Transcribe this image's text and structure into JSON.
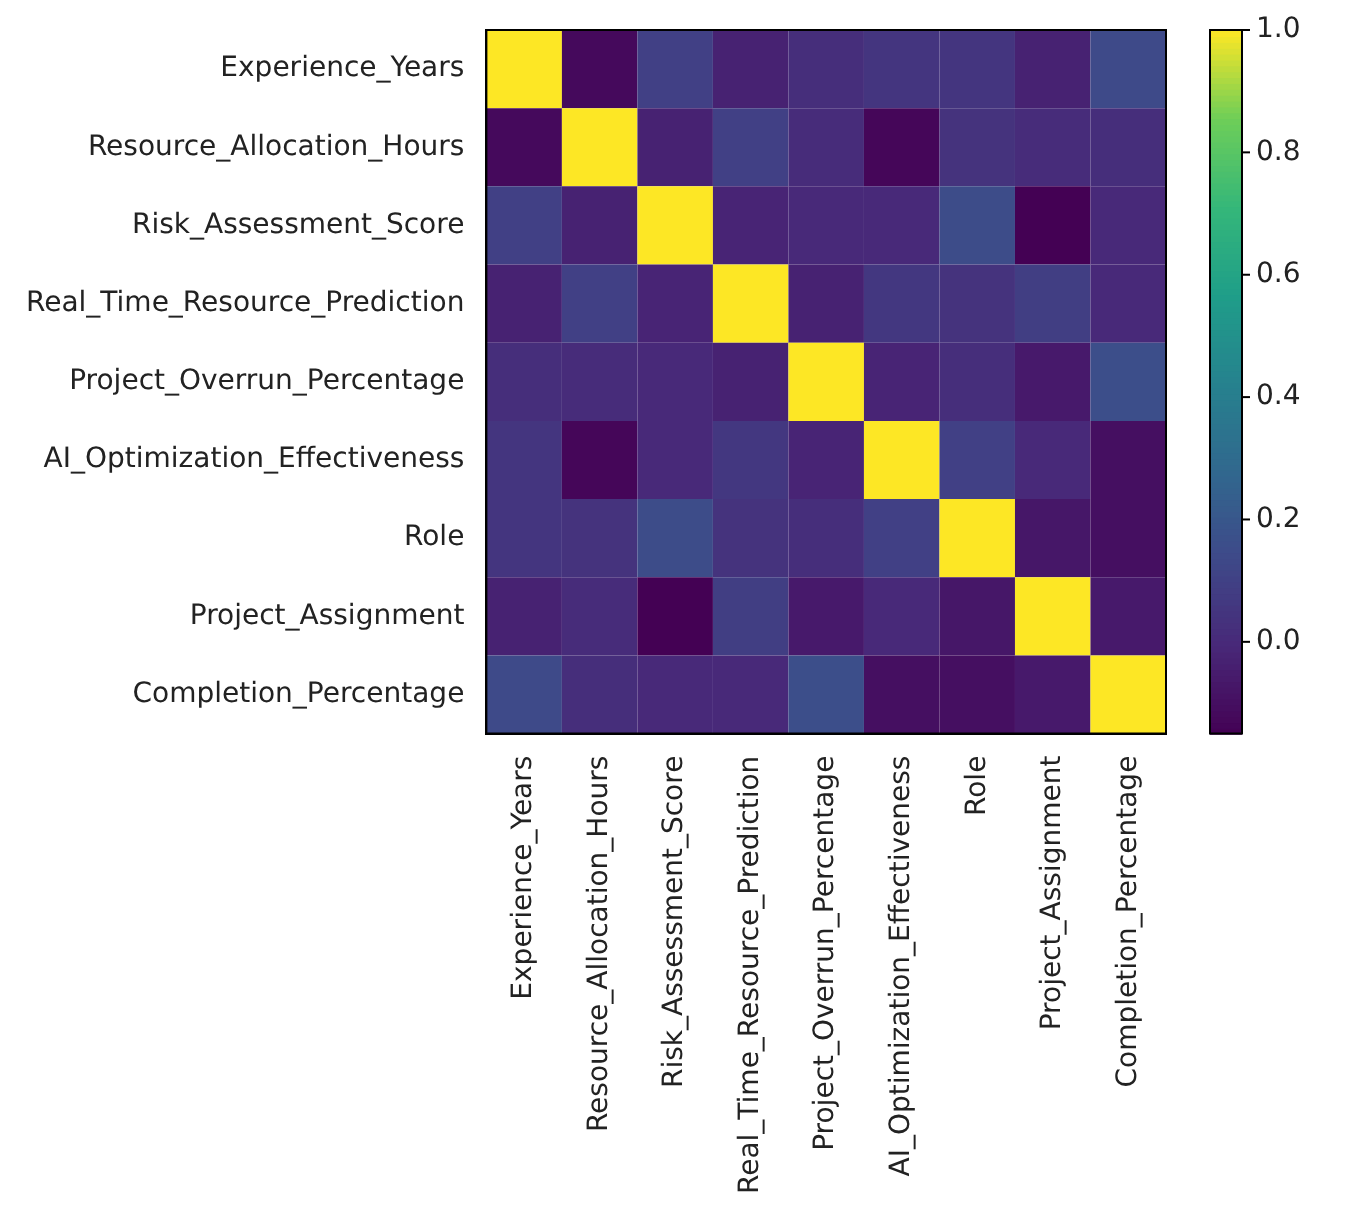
{
  "chart_data": {
    "type": "heatmap",
    "categories": [
      "Experience_Years",
      "Resource_Allocation_Hours",
      "Risk_Assessment_Score",
      "Real_Time_Resource_Prediction",
      "Project_Overrun_Percentage",
      "AI_Optimization_Effectiveness",
      "Role",
      "Project_Assignment",
      "Completion_Percentage"
    ],
    "y_categories": [
      "Experience_Years",
      "Resource_Allocation_Hours",
      "Risk_Assessment_Score",
      "Real_Time_Resource_Prediction",
      "Project_Overrun_Percentage",
      "AI_Optimization_Effectiveness",
      "Role",
      "Project_Assignment",
      "Completion_Percentage"
    ],
    "cells": [
      [
        1,
        -0.12,
        0.1,
        -0.03,
        0.02,
        0.05,
        0.05,
        -0.03,
        0.14
      ],
      [
        -0.12,
        1,
        -0.03,
        0.1,
        0.01,
        -0.13,
        0.04,
        0.01,
        0.02
      ],
      [
        0.1,
        -0.03,
        1,
        -0.02,
        0.0,
        0.0,
        0.15,
        -0.15,
        0.0
      ],
      [
        -0.03,
        0.1,
        -0.02,
        1,
        -0.03,
        0.06,
        0.04,
        0.09,
        0.0
      ],
      [
        0.02,
        0.01,
        0.0,
        -0.03,
        1,
        -0.02,
        0.02,
        -0.06,
        0.16
      ],
      [
        0.05,
        -0.13,
        0.0,
        0.06,
        -0.02,
        1,
        0.1,
        0.0,
        -0.1
      ],
      [
        0.05,
        0.04,
        0.15,
        0.04,
        0.02,
        0.1,
        1,
        -0.07,
        -0.1
      ],
      [
        -0.03,
        0.01,
        -0.15,
        0.09,
        -0.06,
        0.0,
        -0.07,
        1,
        -0.06
      ],
      [
        0.14,
        0.02,
        0.0,
        0.0,
        0.16,
        -0.1,
        -0.1,
        -0.06,
        1
      ]
    ],
    "clim": [
      -0.15,
      1.0
    ],
    "cticks": [
      {
        "value": 0,
        "label": "0.0"
      },
      {
        "value": 0.2,
        "label": "0.2"
      },
      {
        "value": 0.4,
        "label": "0.4"
      },
      {
        "value": 0.6,
        "label": "0.6"
      },
      {
        "value": 0.8,
        "label": "0.8"
      },
      {
        "value": 1,
        "label": "1.0"
      }
    ]
  }
}
